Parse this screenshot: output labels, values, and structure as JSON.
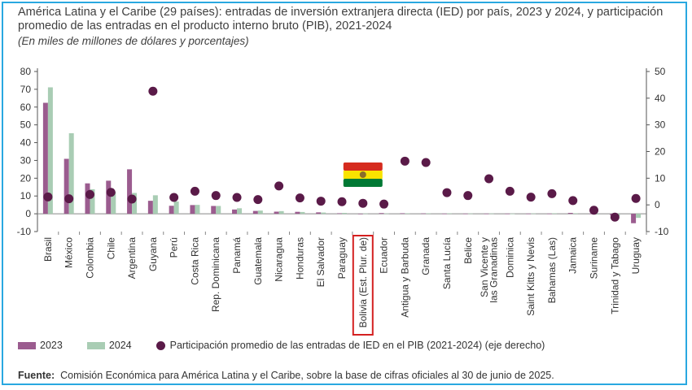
{
  "header": {
    "title": "América Latina y el Caribe (29 países): entradas de inversión extranjera directa (IED) por país, 2023 y 2024, y participación promedio de las entradas en el producto interno bruto (PIB), 2021-2024",
    "subtitle": "(En miles de millones de dólares y porcentajes)"
  },
  "legend": {
    "s2023": "2023",
    "s2024": "2024",
    "share": "Participación promedio de las entradas de IED en el PIB (2021-2024) (eje derecho)"
  },
  "source": {
    "label": "Fuente",
    "text": "Comisión Económica para América Latina y el Caribe, sobre la base de cifras oficiales al 30 de junio de 2025."
  },
  "colors": {
    "s2023": "#9b5c8f",
    "s2024": "#a9cdb4",
    "dots": "#5a1a48",
    "highlight": "#d42020",
    "frame": "#29a8e0"
  },
  "chart_data": {
    "type": "bar",
    "categories": [
      "Brasil",
      "México",
      "Colombia",
      "Chile",
      "Argentina",
      "Guyana",
      "Perú",
      "Costa Rica",
      "Rep. Dominicana",
      "Panamá",
      "Guatemala",
      "Nicaragua",
      "Honduras",
      "El Salvador",
      "Paraguay",
      "Bolivia (Est. Plur. de)",
      "Ecuador",
      "Antigua y Barbuda",
      "Granada",
      "Santa Lucía",
      "Belice",
      "San Vicente y las Granadinas",
      "Dominica",
      "Saint Kitts y Nevis",
      "Bahamas (Las)",
      "Jamaica",
      "Suriname",
      "Trinidad y Tabago",
      "Uruguay"
    ],
    "series": [
      {
        "name": "2023",
        "values": [
          62.4,
          30.9,
          17.1,
          18.6,
          25.0,
          7.3,
          4.5,
          4.9,
          4.4,
          2.4,
          1.6,
          1.2,
          1.1,
          0.8,
          0.3,
          0.0,
          0.4,
          0.3,
          0.2,
          0.1,
          0.1,
          0.1,
          0.1,
          0.1,
          0.1,
          0.5,
          0.1,
          -0.9,
          -5.3
        ]
      },
      {
        "name": "2024",
        "values": [
          71.1,
          45.3,
          13.8,
          12.4,
          11.7,
          10.4,
          6.9,
          5.0,
          4.4,
          3.1,
          1.8,
          1.5,
          1.0,
          0.7,
          0.5,
          0.2,
          0.2,
          0.3,
          0.3,
          0.3,
          0.2,
          0.2,
          0.1,
          0.2,
          0.3,
          0.3,
          -0.4,
          -1.3,
          -2.3
        ]
      },
      {
        "name": "Participación promedio de las entradas de IED en el PIB (2021-2024) (eje derecho)",
        "axis": "right",
        "values": [
          3.0,
          2.3,
          3.9,
          4.7,
          2.2,
          42.6,
          2.8,
          5.1,
          3.5,
          2.8,
          2.0,
          7.1,
          2.6,
          1.4,
          1.2,
          0.6,
          0.3,
          16.4,
          15.9,
          4.6,
          3.5,
          9.8,
          5.1,
          2.9,
          4.2,
          1.6,
          -2.0,
          -4.6,
          2.4
        ]
      }
    ],
    "ylim": [
      -10,
      80
    ],
    "y2lim": [
      -10,
      50
    ],
    "yticks": [
      "80",
      "70",
      "60",
      "50",
      "40",
      "30",
      "20",
      "10",
      "0",
      "-10"
    ],
    "y2ticks": [
      "50",
      "40",
      "30",
      "20",
      "10",
      "0",
      "-10"
    ],
    "highlight_category": "Bolivia (Est. Plur. de)",
    "xlabels": [
      [
        "Brasil"
      ],
      [
        "México"
      ],
      [
        "Colombia"
      ],
      [
        "Chile"
      ],
      [
        "Argentina"
      ],
      [
        "Guyana"
      ],
      [
        "Perú"
      ],
      [
        "Costa Rica"
      ],
      [
        "Rep. Dominicana"
      ],
      [
        "Panamá"
      ],
      [
        "Guatemala"
      ],
      [
        "Nicaragua"
      ],
      [
        "Honduras"
      ],
      [
        "El Salvador"
      ],
      [
        "Paraguay"
      ],
      [
        "Bolivia (Est. Plur. de)"
      ],
      [
        "Ecuador"
      ],
      [
        "Antigua y Barbuda"
      ],
      [
        "Granada"
      ],
      [
        "Santa Lucía"
      ],
      [
        "Belice"
      ],
      [
        "San Vicente y",
        "las Granadinas"
      ],
      [
        "Dominica"
      ],
      [
        "Saint Kitts y Nevis"
      ],
      [
        "Bahamas (Las)"
      ],
      [
        "Jamaica"
      ],
      [
        "Suriname"
      ],
      [
        "Trinidad y Tabago"
      ],
      [
        "Uruguay"
      ]
    ]
  }
}
